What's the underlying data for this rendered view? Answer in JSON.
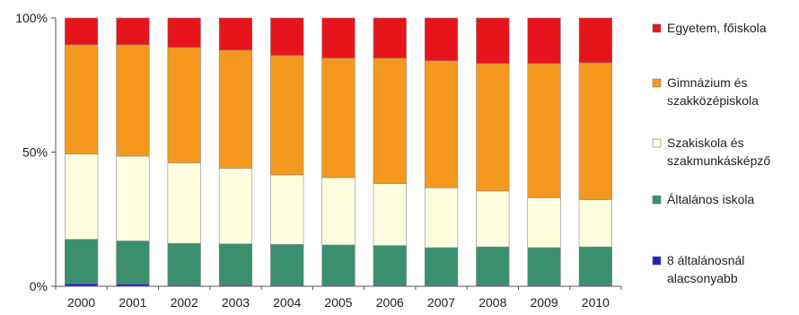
{
  "chart_data": {
    "type": "bar",
    "stacked": true,
    "percent": true,
    "title": "",
    "xlabel": "",
    "ylabel": "",
    "ylim": [
      0,
      100
    ],
    "y_ticks": [
      "0%",
      "50%",
      "100%"
    ],
    "grid": false,
    "legend_position": "right",
    "categories": [
      "2000",
      "2001",
      "2002",
      "2003",
      "2004",
      "2005",
      "2006",
      "2007",
      "2008",
      "2009",
      "2010"
    ],
    "series": [
      {
        "name": "8 általánosnál alacsonyabb",
        "color": "#1f1fd0",
        "values": [
          1.0,
          0.9,
          0.5,
          0.5,
          0.4,
          0.4,
          0.4,
          0.4,
          0.4,
          0.4,
          0.4
        ]
      },
      {
        "name": "Általános iskola",
        "color": "#3a8f6e",
        "values": [
          16.5,
          16.0,
          15.5,
          15.3,
          15.2,
          15.0,
          14.8,
          14.0,
          14.3,
          14.0,
          14.3
        ]
      },
      {
        "name": "Szakiskola és szakmunkásképző",
        "color": "#ffffe0",
        "values": [
          31.8,
          31.6,
          30.0,
          28.2,
          25.9,
          25.1,
          23.1,
          22.3,
          20.8,
          18.6,
          17.6
        ]
      },
      {
        "name": "Gimnázium és szakközépiskola",
        "color": "#f5991e",
        "values": [
          40.7,
          41.5,
          43.0,
          44.0,
          44.5,
          44.5,
          46.7,
          47.3,
          47.5,
          50.0,
          51.0
        ]
      },
      {
        "name": "Egyetem, főiskola",
        "color": "#e8141c",
        "values": [
          10.0,
          10.0,
          11.0,
          12.0,
          14.0,
          15.0,
          15.0,
          16.0,
          17.0,
          17.0,
          16.7
        ]
      }
    ],
    "legend": [
      {
        "lines": [
          "Egyetem, főiskola"
        ],
        "color": "#e8141c"
      },
      {
        "lines": [
          "Gimnázium és",
          "szakközépiskola"
        ],
        "color": "#f5991e"
      },
      {
        "lines": [
          "Szakiskola és",
          "szakmunkásképző"
        ],
        "color": "#ffffe0"
      },
      {
        "lines": [
          "Általános iskola"
        ],
        "color": "#3a8f6e"
      },
      {
        "lines": [
          "8 általánosnál",
          "alacsonyabb"
        ],
        "color": "#1f1fd0"
      }
    ]
  }
}
